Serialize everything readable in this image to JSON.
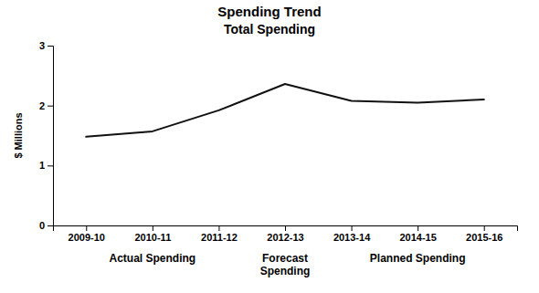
{
  "chart_data": {
    "type": "line",
    "title": "Spending Trend",
    "subtitle": "Total Spending",
    "y_label": "$ Millions",
    "categories": [
      "2009-10",
      "2010-11",
      "2011-12",
      "2012-13",
      "2013-14",
      "2014-15",
      "2015-16"
    ],
    "values": [
      1.48,
      1.57,
      1.92,
      2.36,
      2.08,
      2.05,
      2.1
    ],
    "color": "#111111",
    "ylim": [
      0,
      3
    ],
    "yticks": [
      0,
      1,
      2,
      3
    ],
    "grid": false,
    "annotations": [
      {
        "text": "Actual Spending",
        "x": "2010-11"
      },
      {
        "text": "Forecast\nSpending",
        "x": "2012-13"
      },
      {
        "text": "Planned Spending",
        "x": "2014-15"
      }
    ]
  }
}
